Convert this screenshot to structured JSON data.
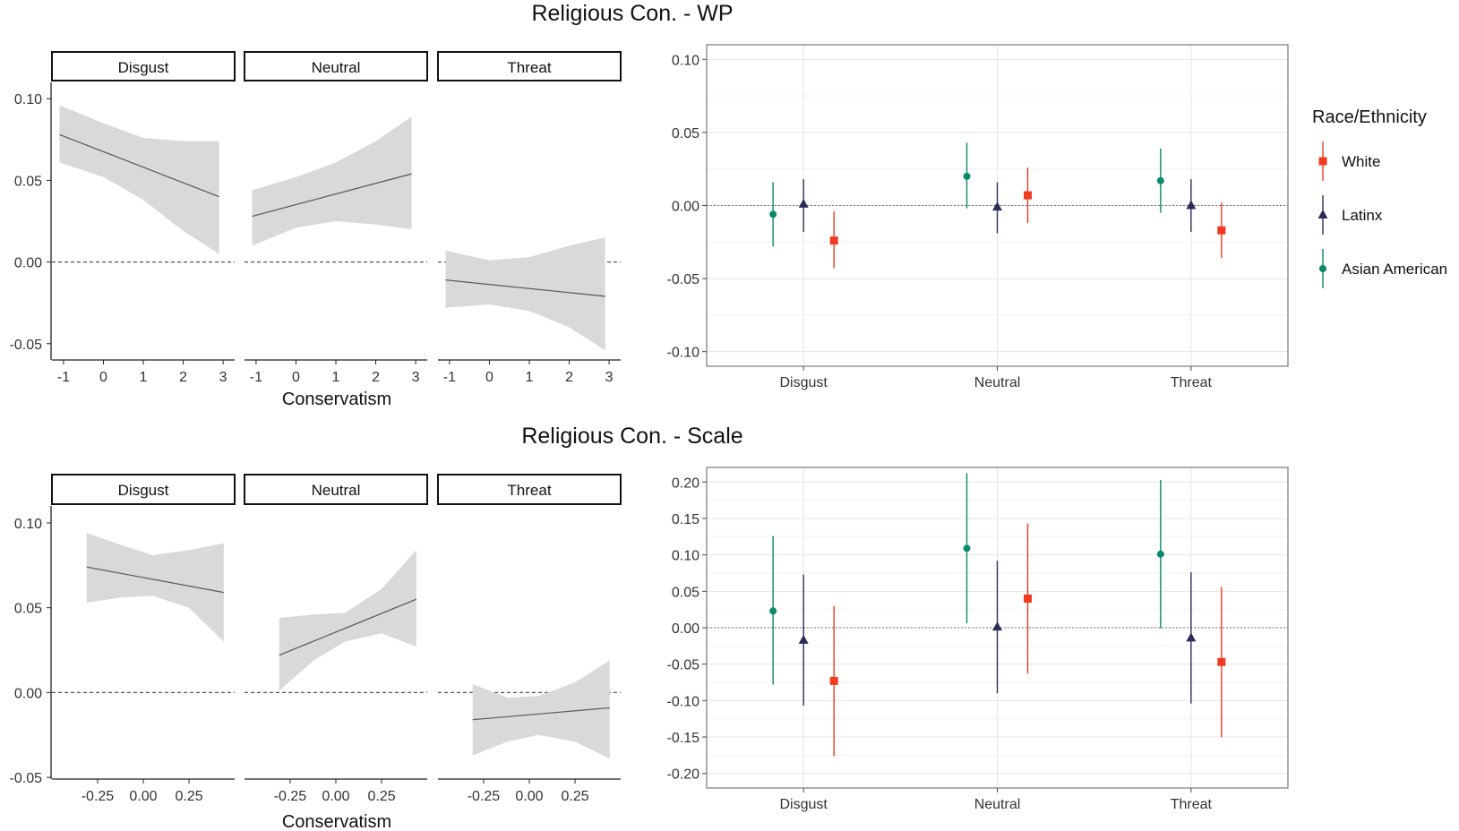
{
  "sections": [
    {
      "title": "Religious Con. - WP",
      "left_panel_title_y": "",
      "xlabel": "Conservatism"
    },
    {
      "title": "Religious Con. - Scale",
      "xlabel": "Conservatism"
    }
  ],
  "legend": {
    "title": "Race/Ethnicity",
    "items": [
      {
        "label": "White",
        "color": "#f03b20",
        "shape": "square"
      },
      {
        "label": "Latinx",
        "color": "#2b2d57",
        "shape": "triangle"
      },
      {
        "label": "Asian American",
        "color": "#0a8a6a",
        "shape": "circle"
      }
    ]
  },
  "chart_data": [
    {
      "type": "line",
      "section": 0,
      "facets": [
        "Disgust",
        "Neutral",
        "Threat"
      ],
      "x_ticks": [
        "-1",
        "0",
        "1",
        "2",
        "3"
      ],
      "x_tick_values": [
        -1,
        0,
        1,
        2,
        3
      ],
      "xlim": [
        -1.2,
        3.2
      ],
      "ylim": [
        -0.06,
        0.11
      ],
      "y_ticks": [
        "0.10",
        "0.05",
        "0.00",
        "-0.05"
      ],
      "y_tick_values": [
        0.1,
        0.05,
        0.0,
        -0.05
      ],
      "xlabel": "Conservatism",
      "reference_line": 0,
      "series": [
        {
          "facet": "Disgust",
          "x": [
            -1.1,
            2.9
          ],
          "y": [
            0.078,
            0.04
          ],
          "ci_x": [
            -1.1,
            0,
            1,
            2,
            2.9
          ],
          "ci_lower": [
            0.061,
            0.052,
            0.038,
            0.019,
            0.005
          ],
          "ci_upper": [
            0.096,
            0.085,
            0.076,
            0.074,
            0.074
          ]
        },
        {
          "facet": "Neutral",
          "x": [
            -1.1,
            2.9
          ],
          "y": [
            0.028,
            0.054
          ],
          "ci_x": [
            -1.1,
            0,
            1,
            2,
            2.9
          ],
          "ci_lower": [
            0.01,
            0.021,
            0.025,
            0.023,
            0.02
          ],
          "ci_upper": [
            0.044,
            0.052,
            0.061,
            0.074,
            0.089
          ]
        },
        {
          "facet": "Threat",
          "x": [
            -1.1,
            2.9
          ],
          "y": [
            -0.011,
            -0.021
          ],
          "ci_x": [
            -1.1,
            0,
            1,
            2,
            2.9
          ],
          "ci_lower": [
            -0.028,
            -0.026,
            -0.03,
            -0.04,
            -0.054
          ],
          "ci_upper": [
            0.007,
            0.001,
            0.003,
            0.01,
            0.015
          ]
        }
      ]
    },
    {
      "type": "scatter",
      "section": 0,
      "categories": [
        "Disgust",
        "Neutral",
        "Threat"
      ],
      "ylim": [
        -0.11,
        0.11
      ],
      "y_ticks": [
        "0.10",
        "0.05",
        "0.00",
        "-0.05",
        "-0.10"
      ],
      "y_tick_values": [
        0.1,
        0.05,
        0.0,
        -0.05,
        -0.1
      ],
      "reference_line": 0,
      "series": [
        {
          "name": "Asian American",
          "values": [
            -0.006,
            0.02,
            0.017
          ],
          "lower": [
            -0.028,
            -0.002,
            -0.005
          ],
          "upper": [
            0.016,
            0.043,
            0.039
          ]
        },
        {
          "name": "Latinx",
          "values": [
            0.001,
            -0.001,
            0.0
          ],
          "lower": [
            -0.018,
            -0.019,
            -0.018
          ],
          "upper": [
            0.018,
            0.016,
            0.018
          ]
        },
        {
          "name": "White",
          "values": [
            -0.024,
            0.007,
            -0.017
          ],
          "lower": [
            -0.043,
            -0.012,
            -0.036
          ],
          "upper": [
            -0.004,
            0.026,
            0.002
          ]
        }
      ]
    },
    {
      "type": "line",
      "section": 1,
      "facets": [
        "Disgust",
        "Neutral",
        "Threat"
      ],
      "x_ticks": [
        "-0.25",
        "0.00",
        "0.25"
      ],
      "x_tick_values": [
        -0.25,
        0,
        0.25
      ],
      "xlim": [
        -0.48,
        0.48
      ],
      "ylim": [
        -0.051,
        0.11
      ],
      "y_ticks": [
        "0.10",
        "0.05",
        "0.00",
        "-0.05"
      ],
      "y_tick_values": [
        0.1,
        0.05,
        0.0,
        -0.05
      ],
      "xlabel": "Conservatism",
      "reference_line": 0,
      "series": [
        {
          "facet": "Disgust",
          "x": [
            -0.31,
            0.44
          ],
          "y": [
            0.074,
            0.059
          ],
          "ci_x": [
            -0.31,
            -0.12,
            0.05,
            0.25,
            0.44
          ],
          "ci_lower": [
            0.053,
            0.056,
            0.057,
            0.05,
            0.03
          ],
          "ci_upper": [
            0.094,
            0.087,
            0.081,
            0.084,
            0.088
          ]
        },
        {
          "facet": "Neutral",
          "x": [
            -0.31,
            0.44
          ],
          "y": [
            0.022,
            0.055
          ],
          "ci_x": [
            -0.31,
            -0.12,
            0.05,
            0.25,
            0.44
          ],
          "ci_lower": [
            0.001,
            0.019,
            0.03,
            0.035,
            0.027
          ],
          "ci_upper": [
            0.044,
            0.046,
            0.047,
            0.061,
            0.084
          ]
        },
        {
          "facet": "Threat",
          "x": [
            -0.31,
            0.44
          ],
          "y": [
            -0.016,
            -0.009
          ],
          "ci_x": [
            -0.31,
            -0.12,
            0.05,
            0.25,
            0.44
          ],
          "ci_lower": [
            -0.037,
            -0.029,
            -0.025,
            -0.029,
            -0.039
          ],
          "ci_upper": [
            0.005,
            -0.003,
            -0.002,
            0.006,
            0.019
          ]
        }
      ]
    },
    {
      "type": "scatter",
      "section": 1,
      "categories": [
        "Disgust",
        "Neutral",
        "Threat"
      ],
      "ylim": [
        -0.22,
        0.22
      ],
      "y_ticks": [
        "0.20",
        "0.15",
        "0.10",
        "0.05",
        "0.00",
        "-0.05",
        "-0.10",
        "-0.15",
        "-0.20"
      ],
      "y_tick_values": [
        0.2,
        0.15,
        0.1,
        0.05,
        0.0,
        -0.05,
        -0.1,
        -0.15,
        -0.2
      ],
      "reference_line": 0,
      "series": [
        {
          "name": "Asian American",
          "values": [
            0.023,
            0.109,
            0.101
          ],
          "lower": [
            -0.078,
            0.006,
            -0.001
          ],
          "upper": [
            0.126,
            0.212,
            0.203
          ]
        },
        {
          "name": "Latinx",
          "values": [
            -0.017,
            0.001,
            -0.014
          ],
          "lower": [
            -0.107,
            -0.09,
            -0.104
          ],
          "upper": [
            0.073,
            0.092,
            0.076
          ]
        },
        {
          "name": "White",
          "values": [
            -0.073,
            0.04,
            -0.047
          ],
          "lower": [
            -0.176,
            -0.063,
            -0.15
          ],
          "upper": [
            0.03,
            0.143,
            0.056
          ]
        }
      ]
    }
  ]
}
